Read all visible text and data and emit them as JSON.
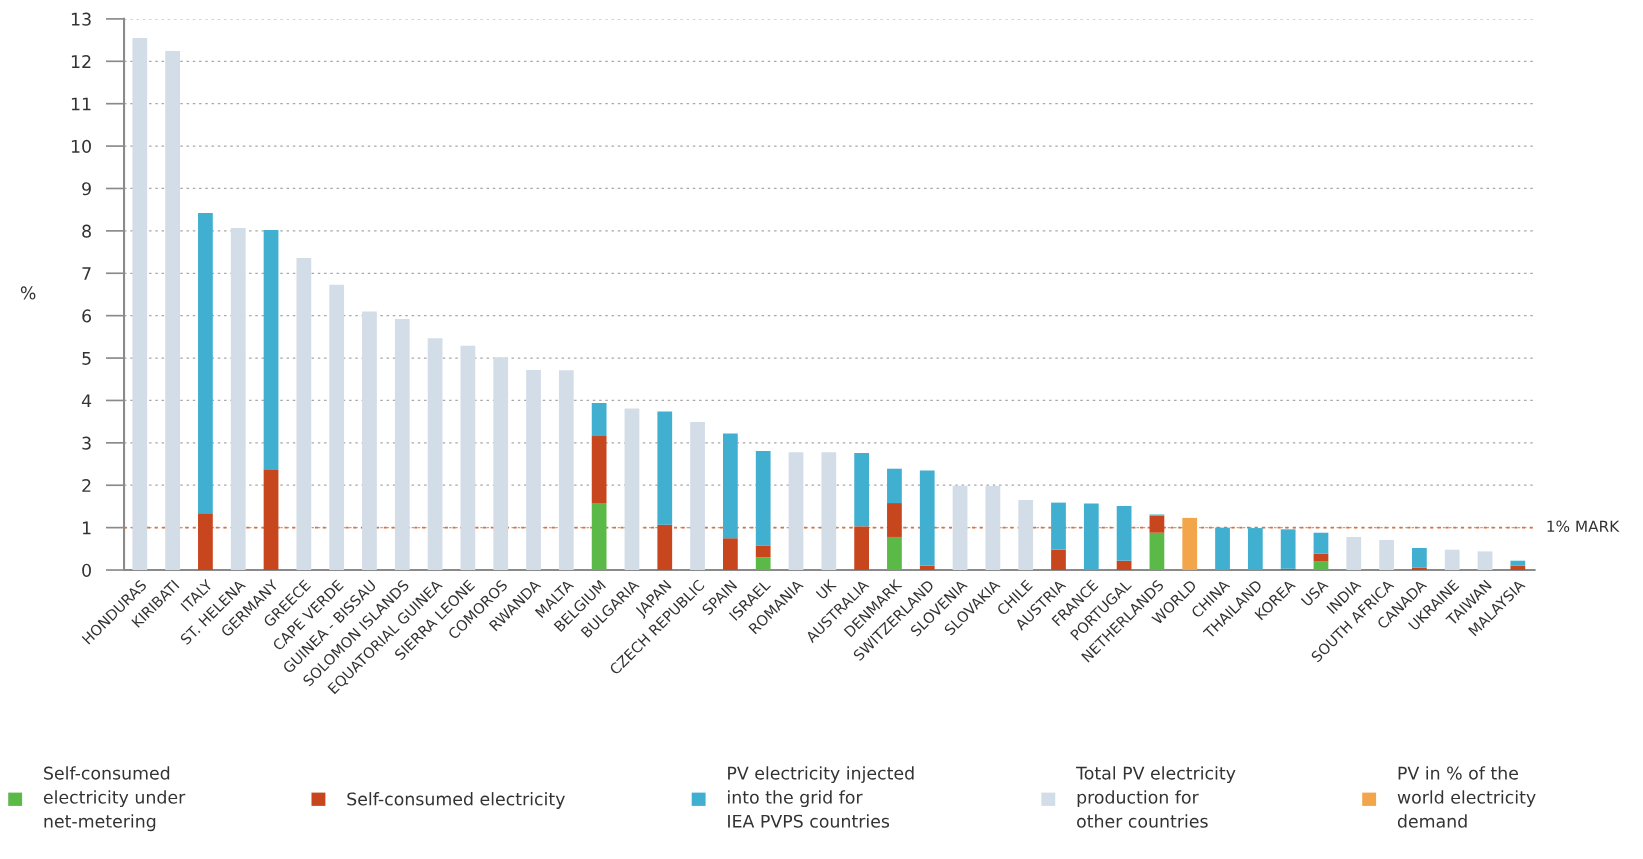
{
  "chart_data": {
    "type": "bar",
    "ylabel": "%",
    "stacked": true,
    "grid": "y",
    "legend": "bottom",
    "categories": [
      "HONDURAS",
      "KIRIBATI",
      "ITALY",
      "ST. HELENA",
      "GERMANY",
      "GREECE",
      "CAPE VERDE",
      "GUINEA - BISSAU",
      "SOLOMON ISLANDS",
      "EQUATORIAL GUINEA",
      "SIERRA LEONE",
      "COMOROS",
      "RWANDA",
      "MALTA",
      "BELGIUM",
      "BULGARIA",
      "JAPAN",
      "CZECH REPUBLIC",
      "SPAIN",
      "ISRAEL",
      "ROMANIA",
      "UK",
      "AUSTRALIA",
      "DENMARK",
      "SWITZERLAND",
      "SLOVENIA",
      "SLOVAKIA",
      "CHILE",
      "AUSTRIA",
      "FRANCE",
      "PORTUGAL",
      "NETHERLANDS",
      "WORLD",
      "CHINA",
      "THAILAND",
      "KOREA",
      "USA",
      "INDIA",
      "SOUTH AFRICA",
      "CANADA",
      "UKRAINE",
      "TAIWAN",
      "MALAYSIA"
    ],
    "series": [
      {
        "name": "Self-consumed\nelectricity under\nnet-metering",
        "color": "#5ab947",
        "values": [
          null,
          null,
          null,
          null,
          null,
          null,
          null,
          null,
          null,
          null,
          null,
          null,
          null,
          null,
          1.58,
          null,
          null,
          null,
          null,
          0.3,
          null,
          null,
          null,
          0.78,
          null,
          null,
          null,
          null,
          null,
          null,
          null,
          0.88,
          null,
          null,
          null,
          null,
          0.2,
          null,
          null,
          null,
          null,
          null,
          null
        ]
      },
      {
        "name": "Self-consumed electricity",
        "color": "#c8461e",
        "values": [
          null,
          null,
          1.34,
          null,
          2.36,
          null,
          null,
          null,
          null,
          null,
          null,
          null,
          null,
          null,
          1.58,
          null,
          1.07,
          null,
          0.75,
          0.28,
          null,
          null,
          1.03,
          0.8,
          0.1,
          null,
          null,
          null,
          0.48,
          null,
          0.22,
          0.4,
          null,
          null,
          null,
          0.03,
          0.19,
          null,
          null,
          0.06,
          null,
          null,
          0.1
        ]
      },
      {
        "name": "PV electricity injected\ninto the grid for\nIEA PVPS countries",
        "color": "#41afd0",
        "values": [
          null,
          null,
          7.08,
          null,
          5.66,
          null,
          null,
          null,
          null,
          null,
          null,
          null,
          null,
          null,
          0.78,
          null,
          2.67,
          null,
          2.47,
          2.23,
          null,
          null,
          1.73,
          0.81,
          2.25,
          null,
          null,
          null,
          1.11,
          1.57,
          1.29,
          0.03,
          null,
          1.0,
          0.99,
          0.93,
          0.49,
          null,
          null,
          0.46,
          null,
          null,
          0.12
        ]
      },
      {
        "name": "Total PV electricity\nproduction for\nother countries",
        "color": "#d3dde8",
        "values": [
          12.55,
          12.24,
          null,
          8.07,
          null,
          7.36,
          6.73,
          6.1,
          5.92,
          5.47,
          5.29,
          5.02,
          4.72,
          4.71,
          null,
          3.81,
          null,
          3.49,
          null,
          null,
          2.78,
          2.78,
          null,
          null,
          null,
          1.99,
          1.98,
          1.65,
          null,
          null,
          null,
          null,
          null,
          null,
          null,
          null,
          null,
          0.78,
          0.71,
          null,
          0.48,
          0.44,
          null
        ]
      },
      {
        "name": "PV in % of the\nworld electricity\ndemand",
        "color": "#f2a54a",
        "values": [
          null,
          null,
          null,
          null,
          null,
          null,
          null,
          null,
          null,
          null,
          null,
          null,
          null,
          null,
          null,
          null,
          null,
          null,
          null,
          null,
          null,
          null,
          null,
          null,
          null,
          null,
          null,
          null,
          null,
          null,
          null,
          null,
          1.23,
          null,
          null,
          null,
          null,
          null,
          null,
          null,
          null,
          null,
          null
        ]
      }
    ],
    "ylim": [
      0,
      13
    ],
    "yticks": [
      0,
      1,
      2,
      3,
      4,
      5,
      6,
      7,
      8,
      9,
      10,
      11,
      12,
      13
    ],
    "ref_lines": [
      {
        "axis": "y",
        "value": 1,
        "label": "1% MARK",
        "color": "#e0703a",
        "line_style": "dotted"
      }
    ]
  }
}
